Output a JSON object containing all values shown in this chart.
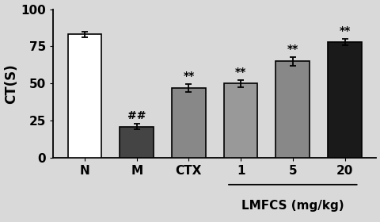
{
  "categories": [
    "N",
    "M",
    "CTX",
    "1",
    "5",
    "20"
  ],
  "values": [
    83,
    21,
    47,
    50,
    65,
    78
  ],
  "errors": [
    2.0,
    2.0,
    2.5,
    2.5,
    3.0,
    2.0
  ],
  "bar_colors": [
    "#ffffff",
    "#444444",
    "#888888",
    "#999999",
    "#888888",
    "#1a1a1a"
  ],
  "bar_edgecolors": [
    "#000000",
    "#000000",
    "#000000",
    "#000000",
    "#000000",
    "#000000"
  ],
  "annotations": [
    "",
    "##",
    "**",
    "**",
    "**",
    "**"
  ],
  "ylabel": "CT(S)",
  "ylim": [
    0,
    100
  ],
  "yticks": [
    0,
    25,
    50,
    75,
    100
  ],
  "lmfcs_label": "LMFCS (mg/kg)",
  "lmfcs_indices": [
    3,
    4,
    5
  ],
  "background_color": "#d9d9d9",
  "bar_width": 0.65,
  "annotation_fontsize": 10,
  "ylabel_fontsize": 12,
  "tick_fontsize": 11
}
